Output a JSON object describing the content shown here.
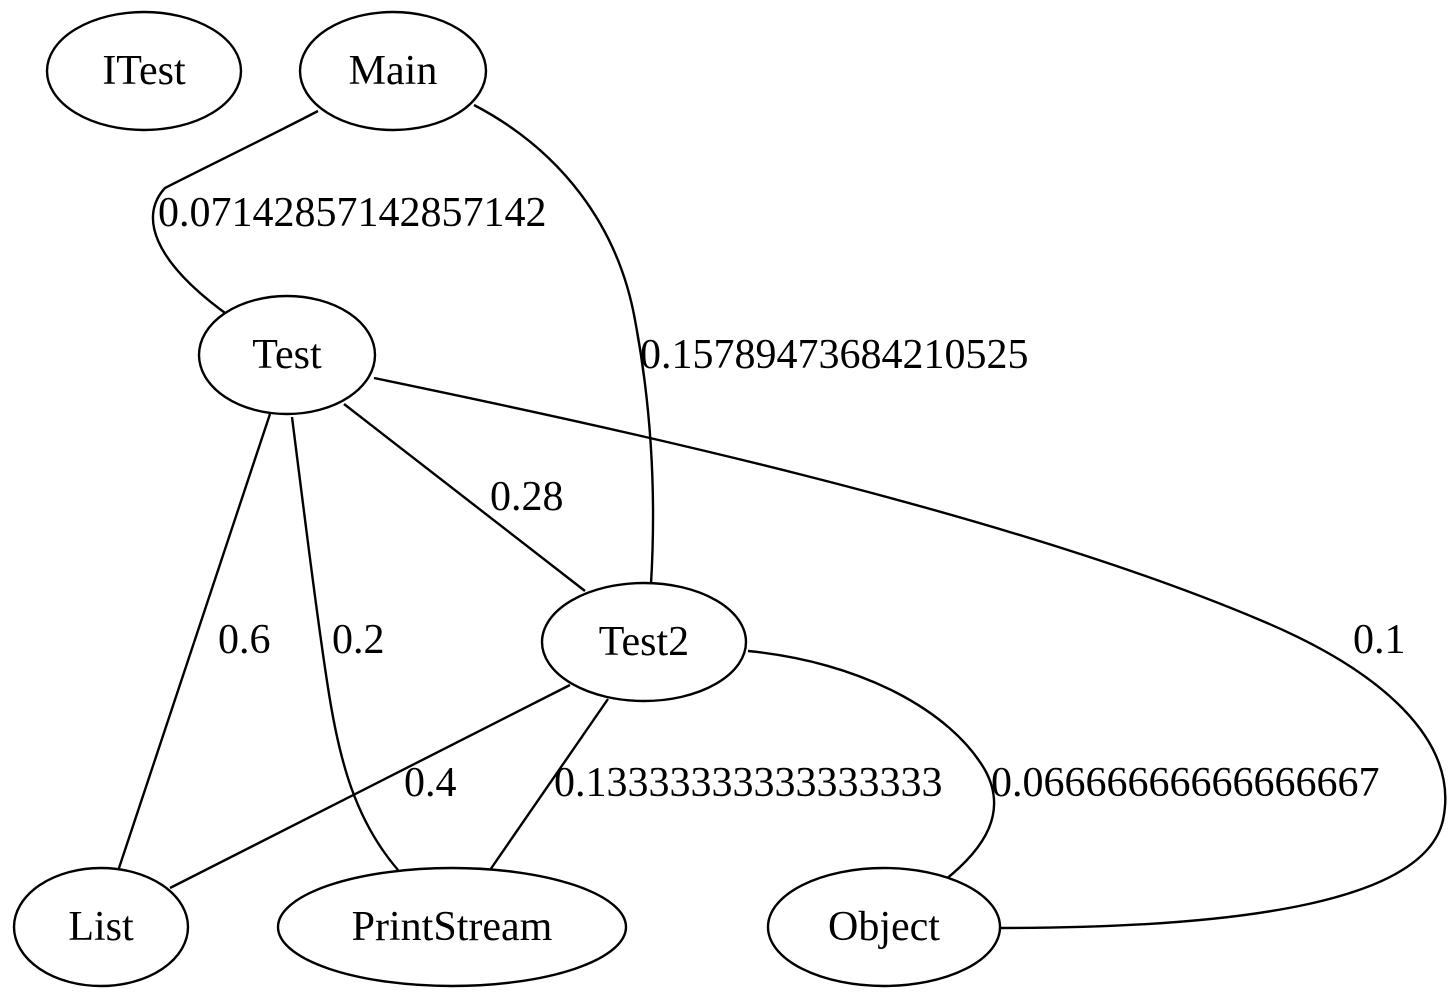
{
  "nodes": [
    {
      "id": "ITest",
      "label": "ITest"
    },
    {
      "id": "Main",
      "label": "Main"
    },
    {
      "id": "Test",
      "label": "Test"
    },
    {
      "id": "Test2",
      "label": "Test2"
    },
    {
      "id": "List",
      "label": "List"
    },
    {
      "id": "PrintStream",
      "label": "PrintStream"
    },
    {
      "id": "Object",
      "label": "Object"
    }
  ],
  "edges": [
    {
      "from": "Main",
      "to": "Test",
      "weight": "0.07142857142857142"
    },
    {
      "from": "Main",
      "to": "Test2",
      "weight": "0.15789473684210525"
    },
    {
      "from": "Test",
      "to": "Test2",
      "weight": "0.28"
    },
    {
      "from": "Test",
      "to": "List",
      "weight": "0.6"
    },
    {
      "from": "Test",
      "to": "PrintStream",
      "weight": "0.2"
    },
    {
      "from": "Test",
      "to": "Object",
      "weight": "0.1"
    },
    {
      "from": "Test2",
      "to": "List",
      "weight": "0.4"
    },
    {
      "from": "Test2",
      "to": "PrintStream",
      "weight": "0.13333333333333333"
    },
    {
      "from": "Test2",
      "to": "Object",
      "weight": "0.06666666666666667"
    }
  ]
}
